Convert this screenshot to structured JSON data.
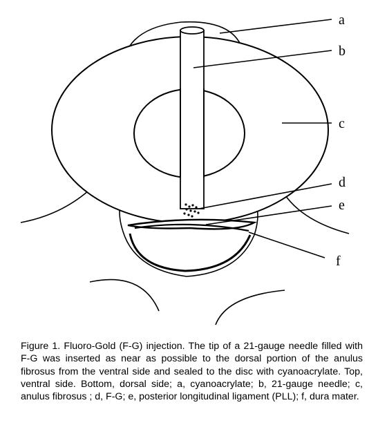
{
  "figure": {
    "labels": {
      "a": "a",
      "b": "b",
      "c": "c",
      "d": "d",
      "e": "e",
      "f": "f"
    }
  },
  "caption": {
    "text": "Figure 1.  Fluoro-Gold (F-G) injection. The tip of a 21-gauge needle filled with F-G was inserted as near as possible to the dorsal portion of the anulus fibrosus from the ventral side and sealed to the disc with cyanoacrylate. Top, ventral side. Bottom, dorsal side; a, cyanoacrylate; b, 21-gauge needle; c, anulus fibrosus ; d, F-G; e, posterior longitudinal ligament (PLL); f, dura mater."
  }
}
